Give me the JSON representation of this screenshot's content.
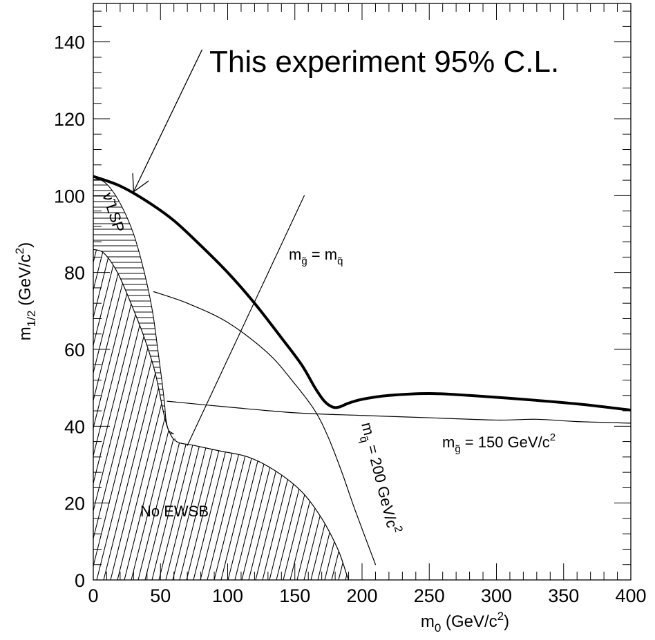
{
  "chart_data": {
    "type": "line",
    "title": "",
    "xlabel": "m0 (GeV/c2)",
    "ylabel": "m1/2 (GeV/c2)",
    "xlim": [
      0,
      400
    ],
    "ylim": [
      0,
      150
    ],
    "xticks": [
      0,
      50,
      100,
      150,
      200,
      250,
      300,
      350,
      400
    ],
    "yticks": [
      0,
      20,
      40,
      60,
      80,
      100,
      120,
      140
    ],
    "grid": false,
    "legend": "none",
    "series": [
      {
        "name": "This experiment 95% C.L.",
        "style": "thick",
        "x": [
          0,
          20,
          40,
          60,
          80,
          100,
          120,
          140,
          155,
          165,
          172,
          178,
          183,
          190,
          200,
          220,
          250,
          280,
          320,
          360,
          400
        ],
        "y": [
          105,
          102.5,
          98.5,
          93.5,
          87,
          80,
          72,
          63,
          56,
          50,
          46.5,
          45,
          45,
          46,
          47,
          48,
          48.5,
          48,
          47,
          45.8,
          44.2
        ]
      },
      {
        "name": "mq~ = 200 GeV/c2",
        "style": "thin",
        "x": [
          45,
          70,
          100,
          130,
          150,
          165,
          175,
          185,
          195,
          210
        ],
        "y": [
          75,
          72,
          67,
          59,
          51,
          44,
          37,
          28,
          18,
          4
        ]
      },
      {
        "name": "mg~ = 150 GeV/c2",
        "style": "thin",
        "x": [
          55,
          100,
          150,
          200,
          250,
          300,
          330,
          360,
          400
        ],
        "y": [
          46.5,
          45,
          43.5,
          42.8,
          42.2,
          41.6,
          41.8,
          41.2,
          40.8
        ]
      },
      {
        "name": "mg~ = mq~",
        "style": "thin",
        "x": [
          70,
          157
        ],
        "y": [
          35,
          100
        ]
      }
    ],
    "regions": [
      {
        "name": "No EWSB",
        "hatch": "diagonal",
        "boundary_x": [
          0,
          8,
          18,
          28,
          38,
          46,
          52,
          56,
          62,
          75,
          95,
          115,
          135,
          155,
          170,
          182,
          188,
          190
        ],
        "boundary_y": [
          86,
          85,
          80,
          72,
          63,
          54,
          44,
          39,
          36,
          35,
          33.5,
          32,
          28.5,
          23,
          16,
          8,
          2,
          0
        ]
      },
      {
        "name": "ν~ LSP",
        "hatch": "horizontal",
        "outer_x": [
          0,
          10,
          20,
          30,
          38,
          44,
          48,
          51,
          53,
          54,
          56,
          60
        ],
        "outer_y": [
          105,
          103,
          98,
          90,
          80,
          70,
          60,
          52,
          46,
          42,
          39,
          38
        ]
      }
    ],
    "annotations": [
      {
        "key": "headline",
        "text": "This experiment 95% C.L.",
        "arrow_from": [
          81,
          138
        ],
        "arrow_to": [
          30,
          101
        ]
      },
      {
        "key": "no_ewsb",
        "text": "No EWSB"
      },
      {
        "key": "lsp",
        "text": "ν̃ LSP"
      },
      {
        "key": "mgmq",
        "text": "m",
        "sub1": "g̃",
        "mid": " = m",
        "sub2": "q̃"
      },
      {
        "key": "mg150",
        "text": "m",
        "sub1": "g̃",
        "mid": " = 150 GeV/c",
        "sup": "2"
      },
      {
        "key": "mq200",
        "text": "m",
        "sub1": "q̃",
        "mid": " = 200 GeV/c",
        "sup": "2"
      }
    ],
    "axis_text": {
      "x_main": "m",
      "x_sub": "0",
      "x_tail": " (GeV/c",
      "x_sup": "2",
      "x_close": ")",
      "y_main": "m",
      "y_sub": "1/2",
      "y_tail": " (GeV/c",
      "y_sup": "2",
      "y_close": ")"
    }
  }
}
